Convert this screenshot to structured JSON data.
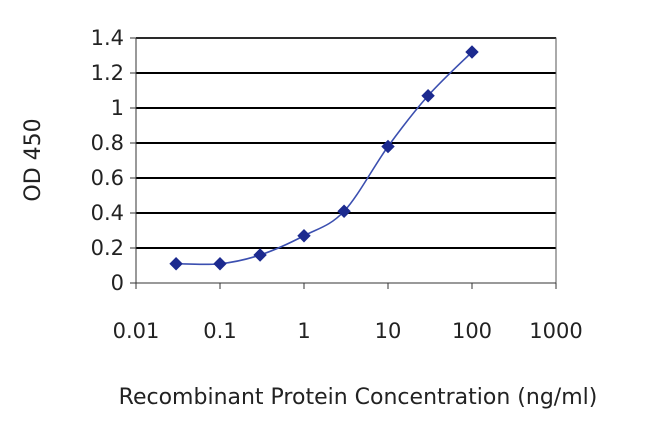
{
  "chart_data": {
    "type": "line",
    "xscale": "log",
    "xlabel": "Recombinant Protein Concentration (ng/ml)",
    "ylabel": "OD 450",
    "xlim": [
      0.01,
      1000
    ],
    "ylim": [
      0,
      1.4
    ],
    "x_ticks": [
      0.01,
      0.1,
      1,
      10,
      100,
      1000
    ],
    "x_tick_labels": [
      "0.01",
      "0.1",
      "1",
      "10",
      "100",
      "1000"
    ],
    "y_ticks": [
      0,
      0.2,
      0.4,
      0.6,
      0.8,
      1,
      1.2,
      1.4
    ],
    "y_tick_labels": [
      "0",
      "0.2",
      "0.4",
      "0.6",
      "0.8",
      "1",
      "1.2",
      "1.4"
    ],
    "grid": "horizontal",
    "series": [
      {
        "x": [
          0.03,
          0.1,
          0.3,
          1,
          3,
          10,
          30,
          100
        ],
        "y": [
          0.11,
          0.11,
          0.16,
          0.27,
          0.41,
          0.78,
          1.07,
          1.32
        ]
      }
    ],
    "colors": {
      "line": "#3b4fb0",
      "marker": "#1c2a8f",
      "grid": "#000000",
      "plot_border": "#555555"
    }
  }
}
